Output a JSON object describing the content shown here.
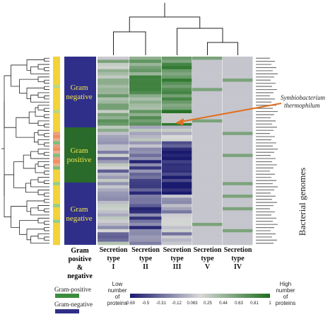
{
  "chart_data": {
    "type": "heatmap",
    "columns": [
      {
        "line1": "Secretion",
        "line2": "type",
        "line3": "I"
      },
      {
        "line1": "Secretion",
        "line2": "type",
        "line3": "II"
      },
      {
        "line1": "Secretion",
        "line2": "type",
        "line3": "III"
      },
      {
        "line1": "Secretion",
        "line2": "type",
        "line3": "V"
      },
      {
        "line1": "Secretion",
        "line2": "type",
        "line3": "IV"
      }
    ],
    "row_count": 60,
    "value_range": [
      -0.69,
      1
    ],
    "colorbar": {
      "low_label": [
        "Low",
        "number",
        "of",
        "proteins"
      ],
      "high_label": [
        "High",
        "number",
        "of",
        "proteins"
      ],
      "ticks": [
        "-0.69",
        "-0.5",
        "-0.31",
        "-0.12",
        "0.063",
        "0.25",
        "0.44",
        "0.63",
        "0.81",
        "1"
      ]
    },
    "gram_block_labels": [
      {
        "line1": "Gram",
        "line2": "negative"
      },
      {
        "line1": "Gram",
        "line2": "positive"
      },
      {
        "line1": "Gram",
        "line2": "negative"
      }
    ],
    "annotation": {
      "line1": "Symbiobacterium",
      "line2": "thermophilum"
    },
    "side_label": "Bacterial genomes",
    "gram_column_title": {
      "line1": "Gram",
      "line2": "positive",
      "line3": "&",
      "line4": "negative"
    },
    "legend": [
      {
        "label": "Gram-positive",
        "color": "#3d8c3d"
      },
      {
        "label": "Gram-negative",
        "color": "#2e2e88"
      }
    ],
    "colors": {
      "low": "#1a1a6e",
      "mid": "#d8d8d8",
      "high": "#1e6e1e",
      "gram_negative_block": "#2f2f8a",
      "gram_positive_block": "#2a6a2a",
      "block_text": "#f2e64a",
      "arrow": "#e07020",
      "strip_yellow": "#f3d23a"
    }
  }
}
